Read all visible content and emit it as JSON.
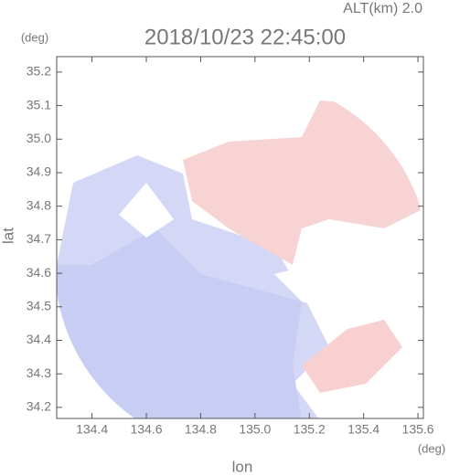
{
  "chart_data": {
    "type": "map",
    "title": "2018/10/23 22:45:00",
    "subtitle": "ALT(km) 2.0",
    "xlabel": "lon",
    "ylabel": "lat",
    "xunit": "(deg)",
    "yunit": "(deg)",
    "xlim": [
      134.27,
      135.62
    ],
    "ylim": [
      34.167,
      35.246
    ],
    "xticks": [
      134.4,
      134.6,
      134.8,
      {
        "value": 135.0,
        "label": "135.0"
      },
      135.2,
      135.4,
      135.6
    ],
    "yticks": [
      34.2,
      34.3,
      34.4,
      34.5,
      34.6,
      34.7,
      34.8,
      34.9,
      {
        "value": 35.0,
        "label": "35.0"
      },
      35.1,
      35.2
    ]
  }
}
